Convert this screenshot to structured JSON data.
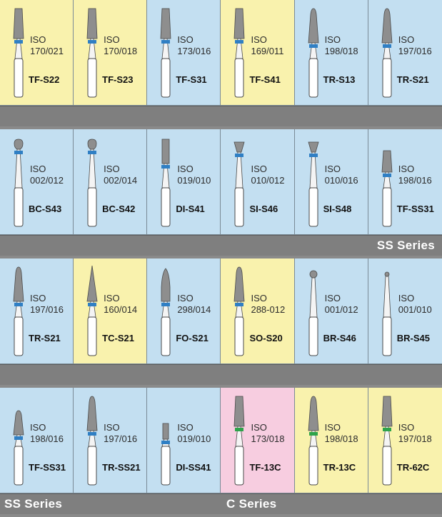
{
  "colors": {
    "blue": "#c3dff1",
    "yellow": "#f9f2ad",
    "pink": "#f7cde0",
    "band_blue": "#2f7fc4",
    "band_green": "#2ea34a",
    "separator": "#7f7f7f"
  },
  "rows": [
    {
      "cells": [
        {
          "iso_label": "ISO",
          "size": "170/021",
          "code": "TF-S22",
          "bg": "yellow",
          "shape": "taper-flat",
          "band": "blue"
        },
        {
          "iso_label": "ISO",
          "size": "170/018",
          "code": "TF-S23",
          "bg": "yellow",
          "shape": "taper-flat",
          "band": "blue"
        },
        {
          "iso_label": "ISO",
          "size": "173/016",
          "code": "TF-S31",
          "bg": "blue",
          "shape": "taper-flat",
          "band": "blue"
        },
        {
          "iso_label": "ISO",
          "size": "169/011",
          "code": "TF-S41",
          "bg": "yellow",
          "shape": "taper-flat",
          "band": "blue"
        },
        {
          "iso_label": "ISO",
          "size": "198/018",
          "code": "TR-S13",
          "bg": "blue",
          "shape": "taper-round",
          "band": "blue"
        },
        {
          "iso_label": "ISO",
          "size": "197/016",
          "code": "TR-S21",
          "bg": "blue",
          "shape": "taper-round",
          "band": "blue"
        }
      ],
      "bar": {
        "left": "",
        "mid": "",
        "right": ""
      }
    },
    {
      "cells": [
        {
          "iso_label": "ISO",
          "size": "002/012",
          "code": "BC-S43",
          "bg": "blue",
          "shape": "ball-collar",
          "band": "blue"
        },
        {
          "iso_label": "ISO",
          "size": "002/014",
          "code": "BC-S42",
          "bg": "blue",
          "shape": "ball-collar",
          "band": "blue"
        },
        {
          "iso_label": "ISO",
          "size": "019/010",
          "code": "DI-S41",
          "bg": "blue",
          "shape": "cylinder",
          "band": "blue"
        },
        {
          "iso_label": "ISO",
          "size": "010/012",
          "code": "SI-S46",
          "bg": "blue",
          "shape": "inverted-cone",
          "band": "blue"
        },
        {
          "iso_label": "ISO",
          "size": "010/016",
          "code": "SI-S48",
          "bg": "blue",
          "shape": "inverted-cone",
          "band": "blue"
        },
        {
          "iso_label": "ISO",
          "size": "198/016",
          "code": "TF-SS31",
          "bg": "blue",
          "shape": "taper-flat-short",
          "band": "blue"
        }
      ],
      "bar": {
        "left": "",
        "mid": "",
        "right": "SS Series"
      }
    },
    {
      "cells": [
        {
          "iso_label": "ISO",
          "size": "197/016",
          "code": "TR-S21",
          "bg": "blue",
          "shape": "taper-round",
          "band": "blue"
        },
        {
          "iso_label": "ISO",
          "size": "160/014",
          "code": "TC-S21",
          "bg": "yellow",
          "shape": "taper-point",
          "band": "blue"
        },
        {
          "iso_label": "ISO",
          "size": "298/014",
          "code": "FO-S21",
          "bg": "blue",
          "shape": "flame",
          "band": "blue"
        },
        {
          "iso_label": "ISO",
          "size": "288-012",
          "code": "SO-S20",
          "bg": "yellow",
          "shape": "taper-round",
          "band": "blue"
        },
        {
          "iso_label": "ISO",
          "size": "001/012",
          "code": "BR-S46",
          "bg": "blue",
          "shape": "ball",
          "band": "none"
        },
        {
          "iso_label": "ISO",
          "size": "001/010",
          "code": "BR-S45",
          "bg": "blue",
          "shape": "ball-small",
          "band": "none"
        }
      ],
      "bar": {
        "left": "",
        "mid": "",
        "right": ""
      }
    },
    {
      "cells": [
        {
          "iso_label": "ISO",
          "size": "198/016",
          "code": "TF-SS31",
          "bg": "blue",
          "shape": "taper-round-short",
          "band": "blue"
        },
        {
          "iso_label": "ISO",
          "size": "197/016",
          "code": "TR-SS21",
          "bg": "blue",
          "shape": "taper-round",
          "band": "blue"
        },
        {
          "iso_label": "ISO",
          "size": "019/010",
          "code": "DI-SS41",
          "bg": "blue",
          "shape": "cylinder-short",
          "band": "blue"
        },
        {
          "iso_label": "ISO",
          "size": "173/018",
          "code": "TF-13C",
          "bg": "pink",
          "shape": "taper-flat",
          "band": "green"
        },
        {
          "iso_label": "ISO",
          "size": "198/018",
          "code": "TR-13C",
          "bg": "yellow",
          "shape": "taper-round",
          "band": "green"
        },
        {
          "iso_label": "ISO",
          "size": "197/018",
          "code": "TR-62C",
          "bg": "yellow",
          "shape": "taper-flat",
          "band": "green"
        }
      ],
      "bar": {
        "left": "SS Series",
        "mid": "C Series",
        "right": ""
      }
    }
  ]
}
